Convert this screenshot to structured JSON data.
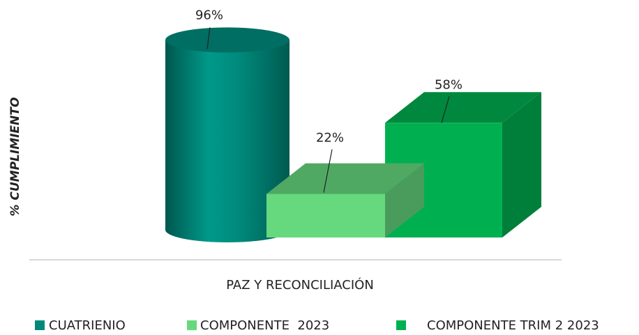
{
  "chart_data": {
    "type": "bar",
    "y_label": "% CUMPLIMIENTO",
    "categories": [
      "PAZ Y RECONCILIACIÓN"
    ],
    "series": [
      {
        "name": "CUATRIENIO",
        "color": "#00897b",
        "values": [
          96
        ],
        "value_labels": [
          "96%"
        ]
      },
      {
        "name": "COMPONENTE  2023",
        "color": "#66d97f",
        "values": [
          22
        ],
        "value_labels": [
          "22%"
        ]
      },
      {
        "name": "COMPONENTE TRIM 2 2023",
        "color": "#00b050",
        "values": [
          58
        ],
        "value_labels": [
          "58%"
        ]
      }
    ]
  }
}
